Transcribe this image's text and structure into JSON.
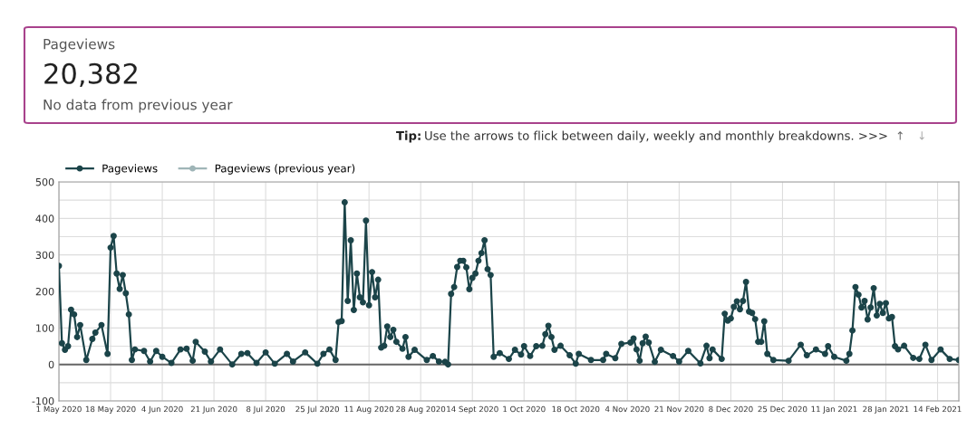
{
  "chart_data": {
    "type": "line",
    "marker": "circle",
    "line_style": "solid",
    "grid": true,
    "legend": "top left",
    "annotations": [
      "Pageviews",
      "20,382",
      "No data from previous year",
      "Tip:",
      "Use the arrows to flick between daily, weekly and monthly breakdowns. >>>",
      "↑",
      "↓"
    ],
    "xlim": [
      "2020-05-01",
      "2021-02-21"
    ],
    "xticks": [
      {
        "value": "2020-05-01",
        "label": "1 May 2020"
      },
      {
        "value": "2020-05-18",
        "label": "18 May 2020"
      },
      {
        "value": "2020-06-04",
        "label": "4 Jun 2020"
      },
      {
        "value": "2020-06-21",
        "label": "21 Jun 2020"
      },
      {
        "value": "2020-07-08",
        "label": "8 Jul 2020"
      },
      {
        "value": "2020-07-25",
        "label": "25 Jul 2020"
      },
      {
        "value": "2020-08-11",
        "label": "11 Aug 2020"
      },
      {
        "value": "2020-08-28",
        "label": "28 Aug 2020"
      },
      {
        "value": "2020-09-14",
        "label": "14 Sept 2020"
      },
      {
        "value": "2020-10-01",
        "label": "1 Oct 2020"
      },
      {
        "value": "2020-10-18",
        "label": "18 Oct 2020"
      },
      {
        "value": "2020-11-04",
        "label": "4 Nov 2020"
      },
      {
        "value": "2020-11-21",
        "label": "21 Nov 2020"
      },
      {
        "value": "2020-12-08",
        "label": "8 Dec 2020"
      },
      {
        "value": "2020-12-25",
        "label": "25 Dec 2020"
      },
      {
        "value": "2021-01-11",
        "label": "11 Jan 2021"
      },
      {
        "value": "2021-01-28",
        "label": "28 Jan 2021"
      },
      {
        "value": "2021-02-14",
        "label": "14 Feb 2021"
      }
    ],
    "ylim": [
      -100,
      500
    ],
    "yticks": [
      -100,
      {
        "value": -50,
        "label": null
      },
      0,
      {
        "value": 50,
        "label": null
      },
      100,
      {
        "value": 150,
        "label": null
      },
      200,
      {
        "value": 250,
        "label": null
      },
      300,
      {
        "value": 350,
        "label": null
      },
      400,
      {
        "value": 450,
        "label": null
      },
      500
    ],
    "ref_lines": [
      {
        "axis": "y",
        "value": 0,
        "color": "#666666"
      }
    ],
    "series": [
      {
        "name": "Pageviews",
        "color": "#1b4449",
        "x": [
          "2020-05-01",
          "2020-05-02",
          "2020-05-03",
          "2020-05-04",
          "2020-05-05",
          "2020-05-06",
          "2020-05-07",
          "2020-05-08",
          "2020-05-10",
          "2020-05-12",
          "2020-05-13",
          "2020-05-15",
          "2020-05-17",
          "2020-05-18",
          "2020-05-19",
          "2020-05-20",
          "2020-05-21",
          "2020-05-22",
          "2020-05-23",
          "2020-05-24",
          "2020-05-25",
          "2020-05-26",
          "2020-05-29",
          "2020-05-31",
          "2020-06-02",
          "2020-06-04",
          "2020-06-07",
          "2020-06-10",
          "2020-06-12",
          "2020-06-14",
          "2020-06-15",
          "2020-06-18",
          "2020-06-20",
          "2020-06-23",
          "2020-06-27",
          "2020-06-30",
          "2020-07-02",
          "2020-07-05",
          "2020-07-08",
          "2020-07-11",
          "2020-07-15",
          "2020-07-17",
          "2020-07-21",
          "2020-07-25",
          "2020-07-27",
          "2020-07-29",
          "2020-07-31",
          "2020-08-01",
          "2020-08-02",
          "2020-08-03",
          "2020-08-04",
          "2020-08-05",
          "2020-08-06",
          "2020-08-07",
          "2020-08-08",
          "2020-08-09",
          "2020-08-10",
          "2020-08-11",
          "2020-08-12",
          "2020-08-13",
          "2020-08-14",
          "2020-08-15",
          "2020-08-16",
          "2020-08-17",
          "2020-08-18",
          "2020-08-19",
          "2020-08-20",
          "2020-08-22",
          "2020-08-23",
          "2020-08-24",
          "2020-08-26",
          "2020-08-30",
          "2020-09-01",
          "2020-09-03",
          "2020-09-05",
          "2020-09-06",
          "2020-09-07",
          "2020-09-08",
          "2020-09-09",
          "2020-09-10",
          "2020-09-11",
          "2020-09-12",
          "2020-09-13",
          "2020-09-14",
          "2020-09-15",
          "2020-09-16",
          "2020-09-17",
          "2020-09-18",
          "2020-09-19",
          "2020-09-20",
          "2020-09-21",
          "2020-09-23",
          "2020-09-26",
          "2020-09-28",
          "2020-09-30",
          "2020-10-01",
          "2020-10-03",
          "2020-10-05",
          "2020-10-07",
          "2020-10-08",
          "2020-10-09",
          "2020-10-10",
          "2020-10-11",
          "2020-10-13",
          "2020-10-16",
          "2020-10-18",
          "2020-10-19",
          "2020-10-23",
          "2020-10-27",
          "2020-10-28",
          "2020-10-31",
          "2020-11-02",
          "2020-11-05",
          "2020-11-06",
          "2020-11-07",
          "2020-11-08",
          "2020-11-09",
          "2020-11-10",
          "2020-11-11",
          "2020-11-13",
          "2020-11-15",
          "2020-11-19",
          "2020-11-21",
          "2020-11-24",
          "2020-11-28",
          "2020-11-30",
          "2020-12-01",
          "2020-12-02",
          "2020-12-05",
          "2020-12-06",
          "2020-12-07",
          "2020-12-08",
          "2020-12-09",
          "2020-12-10",
          "2020-12-11",
          "2020-12-12",
          "2020-12-13",
          "2020-12-14",
          "2020-12-15",
          "2020-12-16",
          "2020-12-17",
          "2020-12-18",
          "2020-12-19",
          "2020-12-20",
          "2020-12-22",
          "2020-12-27",
          "2020-12-31",
          "2021-01-02",
          "2021-01-05",
          "2021-01-08",
          "2021-01-09",
          "2021-01-11",
          "2021-01-15",
          "2021-01-16",
          "2021-01-17",
          "2021-01-18",
          "2021-01-19",
          "2021-01-20",
          "2021-01-21",
          "2021-01-22",
          "2021-01-23",
          "2021-01-24",
          "2021-01-25",
          "2021-01-26",
          "2021-01-27",
          "2021-01-28",
          "2021-01-29",
          "2021-01-30",
          "2021-01-31",
          "2021-02-01",
          "2021-02-03",
          "2021-02-06",
          "2021-02-08",
          "2021-02-10",
          "2021-02-12",
          "2021-02-15",
          "2021-02-18",
          "2021-02-21"
        ],
        "values": [
          270,
          58,
          40,
          50,
          150,
          137,
          75,
          108,
          12,
          70,
          87,
          108,
          29,
          320,
          352,
          249,
          207,
          245,
          195,
          137,
          12,
          41,
          37,
          8,
          37,
          21,
          4,
          41,
          43,
          10,
          62,
          35,
          8,
          41,
          0,
          29,
          31,
          4,
          33,
          2,
          29,
          8,
          33,
          2,
          29,
          41,
          12,
          116,
          119,
          444,
          174,
          340,
          149,
          249,
          184,
          170,
          394,
          162,
          253,
          184,
          232,
          46,
          51,
          104,
          75,
          95,
          62,
          43,
          75,
          21,
          40,
          12,
          23,
          8,
          7,
          0,
          193,
          212,
          267,
          284,
          284,
          266,
          206,
          237,
          249,
          284,
          305,
          340,
          261,
          245,
          21,
          31,
          15,
          40,
          27,
          50,
          23,
          50,
          51,
          83,
          106,
          75,
          40,
          51,
          25,
          2,
          29,
          12,
          12,
          29,
          17,
          56,
          60,
          71,
          41,
          10,
          58,
          76,
          60,
          7,
          40,
          23,
          8,
          37,
          3,
          51,
          17,
          41,
          15,
          139,
          120,
          126,
          158,
          173,
          151,
          174,
          226,
          145,
          141,
          124,
          62,
          62,
          118,
          29,
          12,
          10,
          54,
          25,
          41,
          29,
          50,
          21,
          10,
          29,
          93,
          212,
          191,
          156,
          174,
          123,
          156,
          209,
          134,
          166,
          141,
          168,
          126,
          130,
          50,
          41,
          51,
          18,
          15,
          54,
          12,
          41,
          15,
          12
        ]
      },
      {
        "name": "Pageviews (previous year)",
        "color": "#9fb5b7"
      }
    ]
  }
}
